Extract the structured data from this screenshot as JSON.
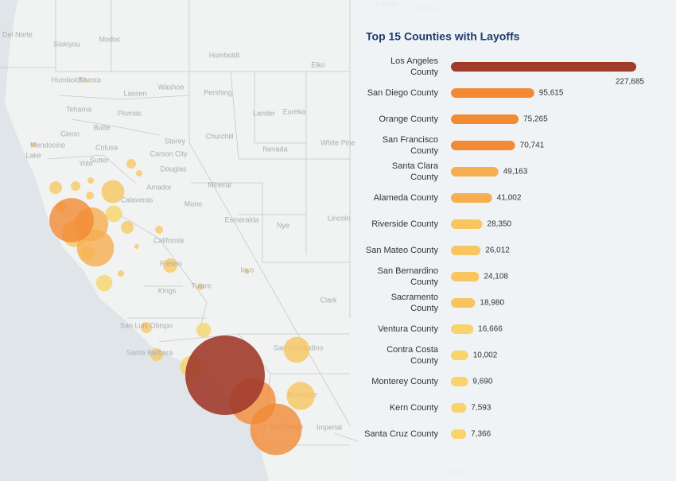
{
  "map": {
    "labels": [
      "Cassia",
      "Oneida",
      "Del Norte",
      "Siskiyou",
      "Modoc",
      "Humboldt",
      "Humboldt",
      "Elko",
      "Shasta",
      "Lassen",
      "Washoe",
      "Pershing",
      "Tehama",
      "Plumas",
      "Lander",
      "Eureka",
      "Butte",
      "Churchill",
      "Glenn",
      "Storey",
      "Mendocino",
      "Colusa",
      "Sutter",
      "Carson City",
      "White Pine",
      "Nevada",
      "Lake",
      "Yolo",
      "Douglas",
      "Amador",
      "Mineral",
      "Calaveras",
      "Mono",
      "Esmeralda",
      "Nye",
      "Lincoln",
      "California",
      "Fresno",
      "Inyo",
      "Kings",
      "Tulare",
      "Clark",
      "San Luis Obispo",
      "Santa Barbara",
      "San Bernardino",
      "Riverside",
      "San Diego",
      "Imperial",
      "Pima"
    ]
  },
  "chart_data": {
    "type": "bar",
    "title": "Top 15 Counties with Layoffs",
    "categories": [
      "Los Angeles County",
      "San Diego County",
      "Orange County",
      "San Francisco County",
      "Santa Clara County",
      "Alameda County",
      "Riverside County",
      "San Mateo County",
      "San Bernardino County",
      "Sacramento County",
      "Ventura County",
      "Contra Costa County",
      "Monterey County",
      "Kern County",
      "Santa Cruz County"
    ],
    "values": [
      227685,
      95615,
      75265,
      70741,
      49163,
      41002,
      28350,
      26012,
      24108,
      18980,
      16666,
      10002,
      9690,
      7593,
      7366
    ],
    "value_labels": [
      "227,685",
      "95,615",
      "75,265",
      "70,741",
      "49,163",
      "41,002",
      "28,350",
      "26,012",
      "24,108",
      "18,980",
      "16,666",
      "10,002",
      "9,690",
      "7,593",
      "7,366"
    ],
    "colors": [
      "#a13b2b",
      "#f18a33",
      "#f18a33",
      "#f18a33",
      "#f6ae50",
      "#f6ae50",
      "#f8c55f",
      "#f8c55f",
      "#f8c55f",
      "#f8c55f",
      "#f8d46a",
      "#f8d46a",
      "#f8d46a",
      "#f8d46a",
      "#f8d46a"
    ]
  }
}
